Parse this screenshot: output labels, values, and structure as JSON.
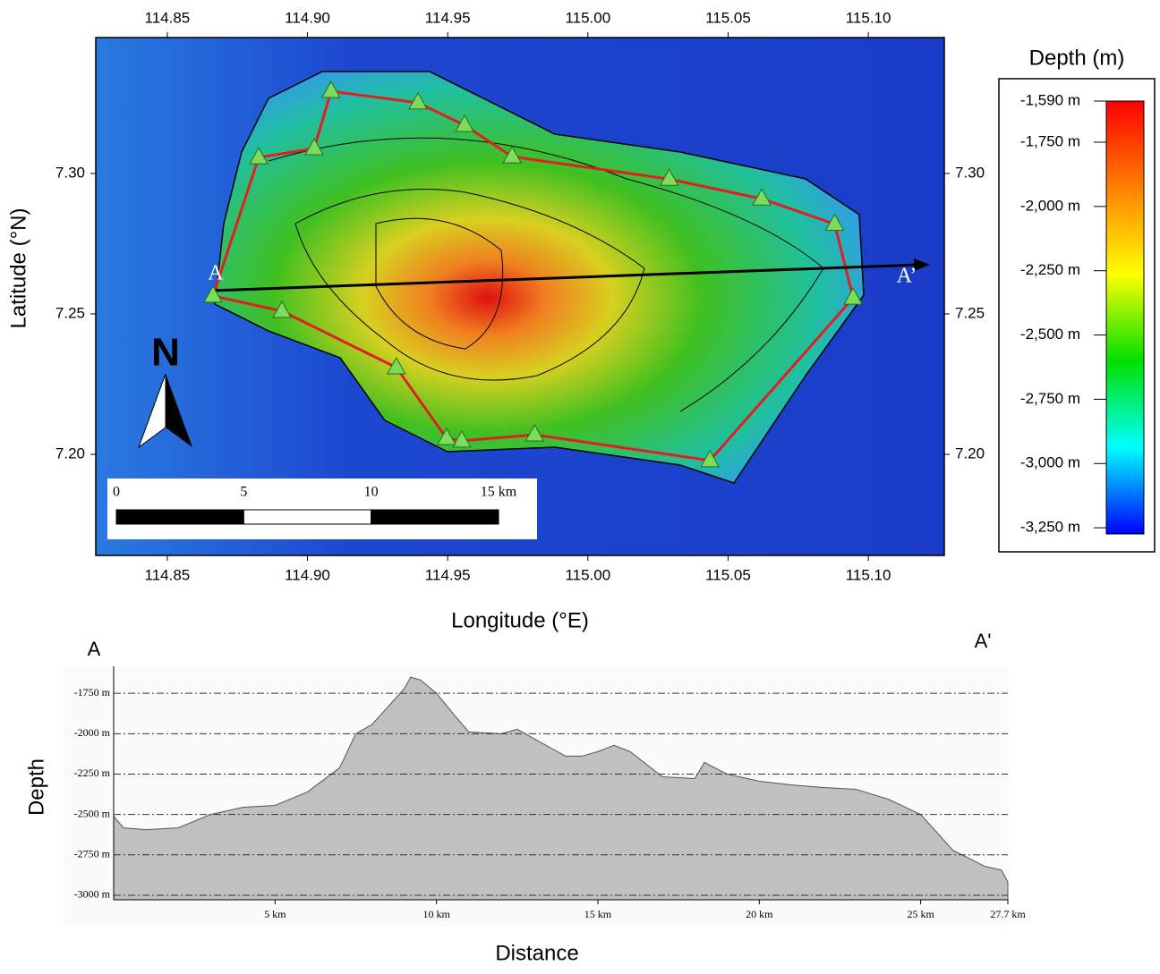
{
  "chart_data": [
    {
      "type": "map",
      "xlabel": "Longitude (°E)",
      "ylabel": "Latitude (°N)",
      "xlim": [
        114.8245,
        115.1271
      ],
      "ylim": [
        7.164,
        7.3484
      ],
      "xticks": [
        114.85,
        {
          "value": 114.9,
          "label": "114.90"
        },
        114.95,
        {
          "value": 115,
          "label": "115.00"
        },
        115.05,
        {
          "value": 115.1,
          "label": "115.10"
        }
      ],
      "yticks": [
        {
          "value": 7.2,
          "label": "7.20"
        },
        7.25,
        {
          "value": 7.3,
          "label": "7.30"
        }
      ],
      "stations": {
        "color": "#7ddc5a",
        "line_color": "#e02020",
        "lon": [
          114.9084,
          114.9394,
          114.956,
          114.973,
          115.029,
          115.062,
          115.088,
          115.0946,
          115.0435,
          114.981,
          114.955,
          114.9496,
          114.9317,
          114.8909,
          114.8663,
          114.8826,
          114.9024
        ],
        "lat": [
          7.3293,
          7.3252,
          7.3172,
          7.306,
          7.298,
          7.291,
          7.282,
          7.2557,
          7.1978,
          7.207,
          7.2048,
          7.2057,
          7.2309,
          7.251,
          7.2564,
          7.3057,
          7.3089
        ]
      },
      "profile_line": {
        "labels": [
          "A",
          "A’"
        ],
        "lon": [
          114.8663,
          115.122
        ],
        "lat": [
          7.2583,
          7.2675
        ]
      },
      "north_label": "N",
      "scale_bar": {
        "xlim": [
          0,
          15
        ],
        "ticks": [
          0,
          5,
          10,
          {
            "value": 15,
            "label": "15 km"
          }
        ]
      },
      "colorbar": {
        "title": "Depth (m)",
        "clim": [
          -3274,
          -1590
        ],
        "colors": [
          "#ff0000",
          "#ff8000",
          "#ffff00",
          "#00e000",
          "#00ffff",
          "#0000ff"
        ],
        "ticks": [
          {
            "value": -1590,
            "label": "-1,590 m"
          },
          {
            "value": -1750,
            "label": "-1,750 m"
          },
          {
            "value": -2000,
            "label": "-2,000 m"
          },
          {
            "value": -2250,
            "label": "-2,250 m"
          },
          {
            "value": -2500,
            "label": "-2,500 m"
          },
          {
            "value": -2750,
            "label": "-2,750 m"
          },
          {
            "value": -3000,
            "label": "-3,000 m"
          },
          {
            "value": -3250,
            "label": "-3,250 m"
          }
        ]
      }
    },
    {
      "type": "area",
      "start_label": "A",
      "end_label": "A'",
      "xlabel": "Distance",
      "ylabel": "Depth",
      "color": "#c0c0c0",
      "xlim": [
        0,
        27.7
      ],
      "ylim": [
        -3028,
        -1583
      ],
      "xticks": [
        {
          "value": 5,
          "label": "5 km"
        },
        {
          "value": 10,
          "label": "10 km"
        },
        {
          "value": 15,
          "label": "15 km"
        },
        {
          "value": 20,
          "label": "20 km"
        },
        {
          "value": 25,
          "label": "25 km"
        },
        {
          "value": 27.7,
          "label": "27.7 km"
        }
      ],
      "yticks": [
        {
          "value": -1750,
          "label": "-1750 m"
        },
        {
          "value": -2000,
          "label": "-2000 m"
        },
        {
          "value": -2250,
          "label": "-2250 m"
        },
        {
          "value": -2500,
          "label": "-2500 m"
        },
        {
          "value": -2750,
          "label": "-2750 m"
        },
        {
          "value": -3000,
          "label": "-3000 m"
        }
      ],
      "grid": true,
      "x": [
        0,
        0.3,
        1,
        2,
        3,
        4,
        5,
        6,
        7,
        7.5,
        8,
        8.5,
        9,
        9.2,
        9.5,
        10,
        10.5,
        11,
        12,
        12.5,
        13,
        14,
        14.5,
        15,
        15.5,
        16,
        17,
        18,
        18.3,
        19,
        20,
        21,
        22,
        23,
        24,
        25,
        26,
        27,
        27.5,
        27.7
      ],
      "values": [
        -2511,
        -2583,
        -2594,
        -2583,
        -2500,
        -2456,
        -2444,
        -2361,
        -2211,
        -2000,
        -1944,
        -1833,
        -1722,
        -1650,
        -1667,
        -1750,
        -1872,
        -1989,
        -2000,
        -1972,
        -2028,
        -2139,
        -2139,
        -2111,
        -2072,
        -2111,
        -2267,
        -2278,
        -2178,
        -2250,
        -2294,
        -2317,
        -2333,
        -2344,
        -2406,
        -2500,
        -2722,
        -2822,
        -2844,
        -2917
      ]
    }
  ]
}
